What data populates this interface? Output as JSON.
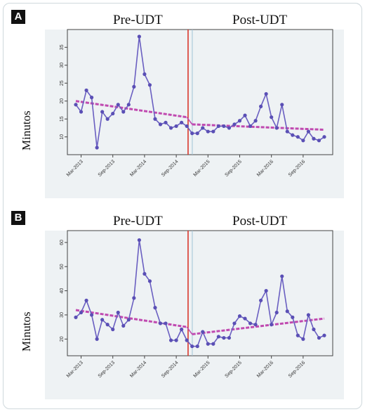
{
  "chart_data": [
    {
      "type": "line",
      "panel_label": "A",
      "pre_label": "Pre-UDT",
      "post_label": "Post-UDT",
      "ylabel": "Minutos",
      "ylim": [
        7,
        38
      ],
      "yticks": [
        10,
        15,
        20,
        25,
        30,
        35
      ],
      "x_tick_labels": [
        "Mar-2013",
        "Sep-2013",
        "Mar-2014",
        "Sep-2014",
        "Mar-2015",
        "Sep-2015",
        "Mar-2016",
        "Sep-2016"
      ],
      "series": [
        {
          "values": [
            19,
            17,
            23,
            21,
            7,
            17,
            15,
            16.5,
            19,
            17,
            19,
            24,
            38,
            27.5,
            24.5,
            15,
            13.5,
            14,
            12.5,
            13,
            14,
            13,
            11,
            11,
            12.5,
            11.5,
            11.5,
            13,
            13,
            12.5,
            13.5,
            14.5,
            16,
            13,
            14.5,
            18.5,
            22,
            15.5,
            12.5,
            19,
            11.5,
            10.5,
            10,
            9,
            11.5,
            9.5,
            9,
            10
          ]
        }
      ],
      "trend_pre": [
        20,
        15.5
      ],
      "trend_post": [
        13.5,
        12
      ],
      "intervention_index": 21.5
    },
    {
      "type": "line",
      "panel_label": "B",
      "pre_label": "Pre-UDT",
      "post_label": "Post-UDT",
      "ylabel": "Minutos",
      "ylim": [
        16,
        62
      ],
      "yticks": [
        20,
        30,
        40,
        50,
        60
      ],
      "x_tick_labels": [
        "Mar-2013",
        "Sep-2013",
        "Mar-2014",
        "Sep-2014",
        "Mar-2015",
        "Sep-2015",
        "Mar-2016",
        "Sep-2016"
      ],
      "series": [
        {
          "values": [
            29,
            31,
            36,
            30,
            20,
            28,
            26,
            24,
            31,
            25.5,
            28,
            37,
            61,
            47,
            44,
            33,
            26.5,
            26.5,
            19.5,
            19.5,
            24,
            19.5,
            17,
            17,
            23,
            18,
            18,
            21,
            20.5,
            20.5,
            26.5,
            29.5,
            28.5,
            26.5,
            26,
            36,
            40,
            26,
            31,
            46,
            31.5,
            29,
            21.5,
            20,
            30,
            24,
            20.5,
            21.5
          ]
        }
      ],
      "trend_pre": [
        32,
        25
      ],
      "trend_post": [
        22,
        28.5
      ],
      "intervention_index": 21.5
    }
  ]
}
